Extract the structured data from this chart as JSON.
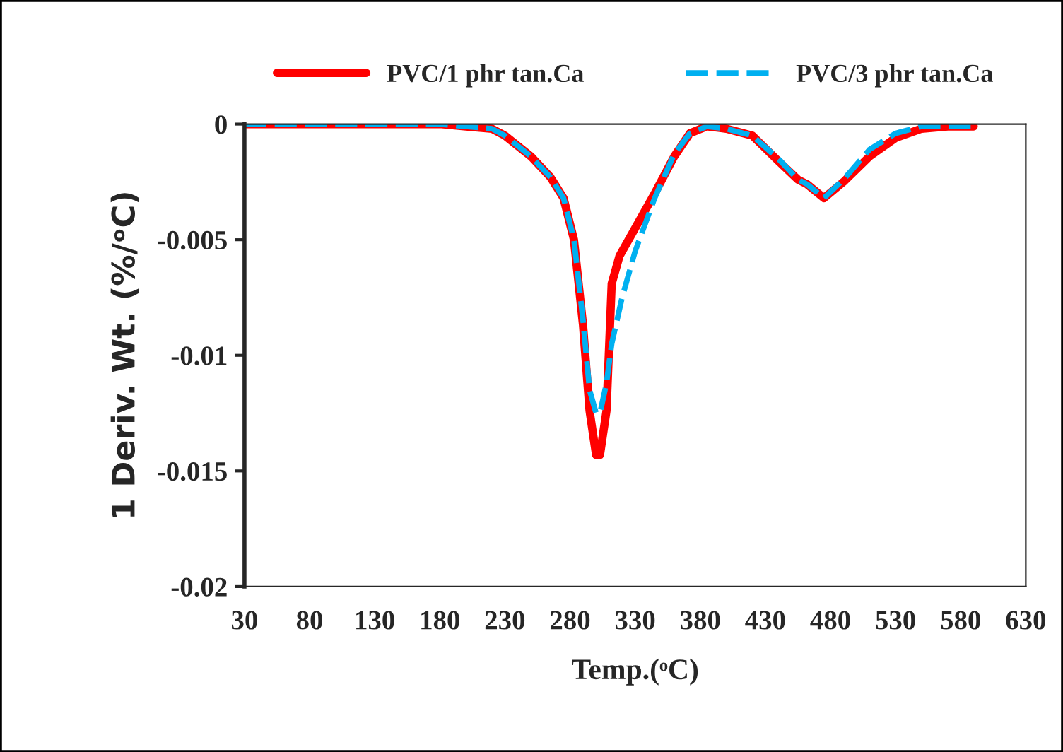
{
  "chart_data": {
    "type": "line",
    "xlabel": "Temp.(ᵒC)",
    "ylabel": "1 Deriv. Wt. (%/ᵒC)",
    "xlim": [
      30,
      630
    ],
    "xticks": [
      30,
      80,
      130,
      180,
      230,
      280,
      330,
      380,
      430,
      480,
      530,
      580,
      630
    ],
    "ylim": [
      -0.02,
      0
    ],
    "yticks": [
      -0.02,
      -0.015,
      -0.01,
      -0.005,
      0
    ],
    "legend": "top",
    "grid": false,
    "series": [
      {
        "name": "PVC/1 phr tan.Ca",
        "color": "#ff0000",
        "line_style": "solid",
        "x": [
          30,
          180,
          200,
          220,
          230,
          250,
          265,
          275,
          283,
          290,
          295,
          300,
          303,
          308,
          312,
          318,
          330,
          345,
          360,
          372,
          385,
          400,
          420,
          440,
          455,
          462,
          475,
          490,
          510,
          530,
          550,
          570,
          590
        ],
        "values": [
          0,
          0,
          -0.0001,
          -0.0002,
          -0.0005,
          -0.0014,
          -0.0023,
          -0.0032,
          -0.005,
          -0.0087,
          -0.0124,
          -0.0143,
          -0.0143,
          -0.0124,
          -0.0069,
          -0.0057,
          -0.0045,
          -0.003,
          -0.0014,
          -0.0004,
          -0.0001,
          -0.0002,
          -0.0005,
          -0.0016,
          -0.0024,
          -0.0026,
          -0.0032,
          -0.0025,
          -0.0014,
          -0.0006,
          -0.0002,
          -0.0001,
          -0.0001
        ]
      },
      {
        "name": "PVC/3 phr tan.Ca",
        "color": "#00b0f0",
        "line_style": "dashed",
        "x": [
          30,
          180,
          200,
          220,
          230,
          250,
          265,
          275,
          283,
          290,
          295,
          300,
          303,
          308,
          312,
          320,
          330,
          345,
          360,
          372,
          385,
          400,
          420,
          440,
          455,
          462,
          475,
          490,
          510,
          530,
          550,
          570,
          590
        ],
        "values": [
          0,
          0,
          -0.0001,
          -0.0002,
          -0.0005,
          -0.0014,
          -0.0023,
          -0.0032,
          -0.005,
          -0.0085,
          -0.0115,
          -0.0125,
          -0.0125,
          -0.0112,
          -0.0095,
          -0.0075,
          -0.0055,
          -0.0032,
          -0.0013,
          -0.0004,
          -0.0001,
          -0.0002,
          -0.0005,
          -0.0015,
          -0.0024,
          -0.0026,
          -0.0032,
          -0.0024,
          -0.0011,
          -0.0004,
          -0.0001,
          -0.0001,
          -0.0001
        ]
      }
    ]
  }
}
